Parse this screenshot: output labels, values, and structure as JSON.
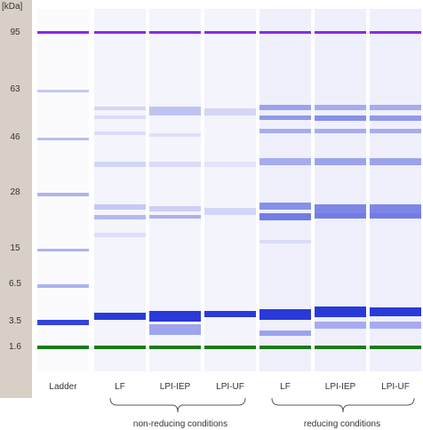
{
  "axis": {
    "unit": "[kDa]",
    "ticks": [
      {
        "label": "95",
        "kda": 95
      },
      {
        "label": "63",
        "kda": 63
      },
      {
        "label": "46",
        "kda": 46
      },
      {
        "label": "28",
        "kda": 28
      },
      {
        "label": "15",
        "kda": 15
      },
      {
        "label": "6.5",
        "kda": 6.5
      },
      {
        "label": "3.5",
        "kda": 3.5
      },
      {
        "label": "1.6",
        "kda": 1.6
      }
    ]
  },
  "lanes": [
    {
      "label": "Ladder"
    },
    {
      "label": "LF"
    },
    {
      "label": "LPI-IEP"
    },
    {
      "label": "LPI-UF"
    },
    {
      "label": "LF"
    },
    {
      "label": "LPI-IEP"
    },
    {
      "label": "LPI-UF"
    }
  ],
  "groups": [
    {
      "label": "non-reducing conditions"
    },
    {
      "label": "reducing conditions"
    }
  ],
  "colors": {
    "upper_marker": "#8a2be2",
    "lower_marker": "#1a7a1a",
    "band": "#1f2fd6",
    "axis_strip": "#d8cfc6"
  }
}
